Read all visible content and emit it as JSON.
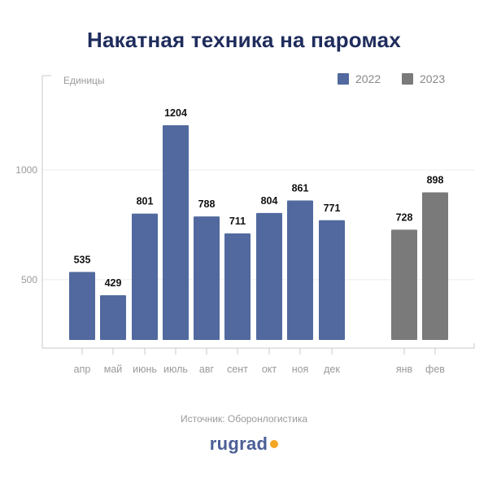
{
  "title": "Накатная техника на паромах",
  "source": "Источник: Оборонлогистика",
  "brand": "rugrad",
  "colors": {
    "s2022": "#51699e",
    "s2023": "#7a7a7a",
    "title": "#1f2c5c",
    "axis": "#c8c8c8",
    "label": "#9a9a9a"
  },
  "chart_data": {
    "type": "bar",
    "ylabel": "Единицы",
    "ylim": [
      0,
      1450
    ],
    "yticks": [
      500,
      1000
    ],
    "grid": true,
    "legend": "top-right",
    "series": [
      {
        "name": "2022",
        "color": "#51699e",
        "categories": [
          "апр",
          "май",
          "июнь",
          "июль",
          "авг",
          "сент",
          "окт",
          "ноя",
          "дек"
        ],
        "values": [
          535,
          429,
          801,
          1204,
          788,
          711,
          804,
          861,
          771
        ]
      },
      {
        "name": "2023",
        "color": "#7a7a7a",
        "categories": [
          "янв",
          "фев"
        ],
        "values": [
          728,
          898
        ]
      }
    ]
  }
}
